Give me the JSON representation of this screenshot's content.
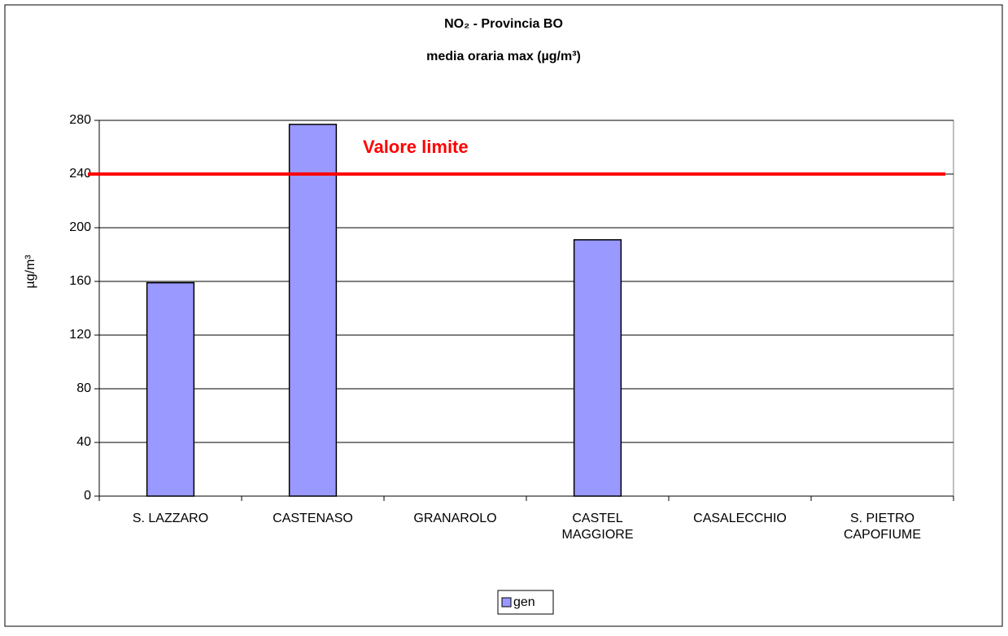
{
  "chart_data": {
    "type": "bar",
    "title": [
      "NO₂ - Provincia BO",
      "media oraria max (µg/m³)"
    ],
    "ylabel": "µg/m³",
    "categories": [
      "S. LAZZARO",
      "CASTENASO",
      "GRANAROLO",
      [
        "CASTEL",
        "MAGGIORE"
      ],
      "CASALECCHIO",
      [
        "S. PIETRO",
        "CAPOFIUME"
      ]
    ],
    "series": [
      {
        "name": "gen",
        "color": "#9999ff",
        "values": [
          159,
          277,
          null,
          191,
          null,
          null
        ]
      }
    ],
    "ylim": [
      0,
      280
    ],
    "yticks": [
      0,
      40,
      80,
      120,
      160,
      200,
      240,
      280
    ],
    "grid": true,
    "reference_line": {
      "value": 240,
      "label": "Valore limite",
      "color": "#ff0000"
    },
    "legend": "bottom"
  }
}
